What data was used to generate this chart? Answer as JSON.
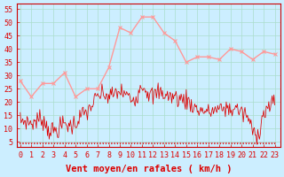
{
  "bg_color": "#cceeff",
  "grid_color": "#aaddcc",
  "line_color_avg": "#ff9999",
  "line_color_gust": "#dd0000",
  "xlabel": "Vent moyen/en rafales ( km/h )",
  "xlabel_color": "#dd0000",
  "xlabel_fontsize": 7.5,
  "ylim": [
    3,
    57
  ],
  "yticks": [
    5,
    10,
    15,
    20,
    25,
    30,
    35,
    40,
    45,
    50,
    55
  ],
  "tick_fontsize": 6,
  "tick_color": "#dd0000",
  "arrow_color": "#dd0000",
  "gust_ctrl_x": [
    0,
    0.5,
    1,
    1.5,
    2,
    2.5,
    3,
    3.5,
    4,
    4.5,
    5,
    5.5,
    6,
    6.5,
    7,
    7.5,
    8,
    8.5,
    9,
    9.5,
    10,
    10.5,
    11,
    11.5,
    12,
    12.5,
    13,
    13.5,
    14,
    14.5,
    15,
    15.5,
    16,
    16.5,
    17,
    17.5,
    18,
    18.5,
    19,
    19.5,
    20,
    20.5,
    21,
    21.5,
    22,
    22.5,
    23
  ],
  "gust_ctrl_y": [
    13,
    13,
    12,
    13,
    14,
    10,
    9,
    10,
    12,
    11,
    12,
    15,
    16,
    19,
    22,
    23,
    22,
    23,
    24,
    23,
    21,
    22,
    27,
    24,
    22,
    24,
    23,
    22,
    22,
    21,
    21,
    19,
    17,
    17,
    16,
    17,
    17,
    18,
    17,
    18,
    16,
    15,
    9,
    8,
    16,
    18,
    20
  ],
  "avg_ctrl_x": [
    0,
    1,
    2,
    3,
    4,
    5,
    6,
    7,
    8,
    9,
    10,
    11,
    12,
    13,
    14,
    15,
    16,
    17,
    18,
    19,
    20,
    21,
    22,
    23
  ],
  "avg_ctrl_y": [
    28,
    22,
    27,
    27,
    31,
    22,
    25,
    25,
    33,
    48,
    46,
    52,
    52,
    46,
    43,
    35,
    37,
    37,
    36,
    40,
    39,
    36,
    39,
    38
  ],
  "xtick_labels": [
    "0",
    "1",
    "2",
    "3",
    "4",
    "5",
    "6",
    "7",
    "8",
    "9",
    "10",
    "11",
    "12",
    "13",
    "14",
    "15",
    "16",
    "17",
    "18",
    "19",
    "20",
    "21",
    "22",
    "23"
  ]
}
